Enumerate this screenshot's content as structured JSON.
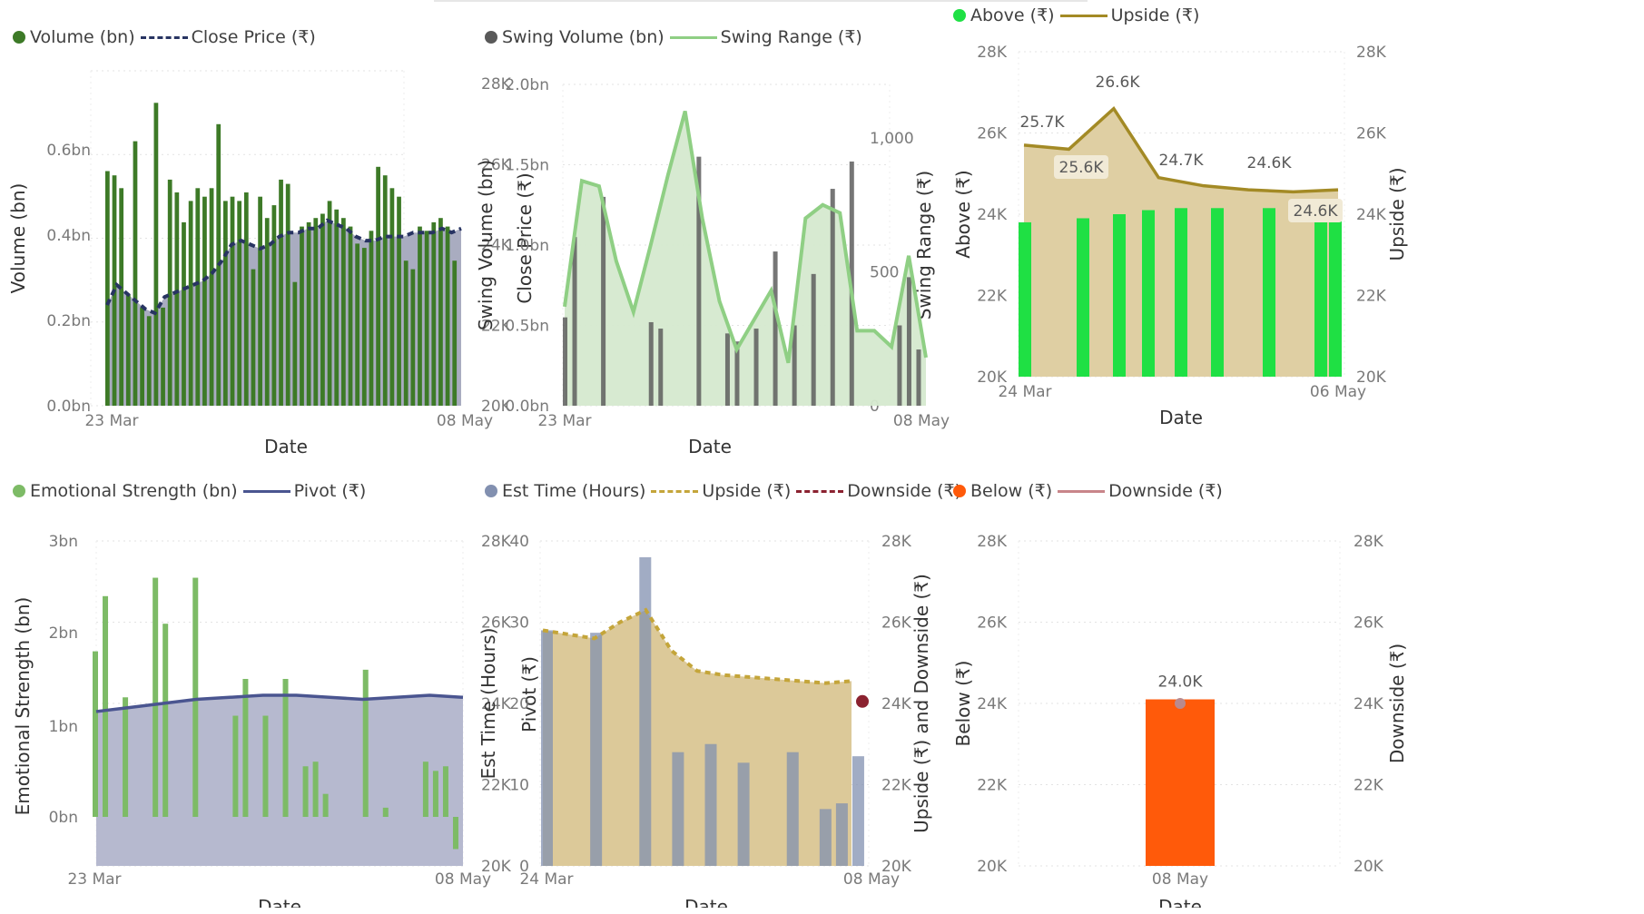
{
  "chart_data": [
    {
      "type": "bar",
      "legend": [
        {
          "label": "Volume (bn)",
          "color": "#3d7a27",
          "shape": "dot"
        },
        {
          "label": "Close Price (₹)",
          "color": "#283462",
          "shape": "dashed"
        }
      ],
      "xlabel": "Date",
      "ylabel": "Volume (bn)",
      "y2label": "Close Price (₹)",
      "x_ticks": [
        "23 Mar",
        "08 May"
      ],
      "y_ticks": [
        "0.0bn",
        "0.2bn",
        "0.4bn",
        "0.6bn"
      ],
      "ylim": [
        0,
        0.7
      ],
      "y2_ticks": [
        "20K",
        "22K",
        "24K",
        "26K",
        "28K"
      ],
      "y2lim": [
        20000,
        28000
      ],
      "bars": [
        0.55,
        0.54,
        0.51,
        0.26,
        0.62,
        0.23,
        0.21,
        0.71,
        0.23,
        0.53,
        0.5,
        0.43,
        0.48,
        0.51,
        0.49,
        0.51,
        0.66,
        0.48,
        0.49,
        0.48,
        0.5,
        0.32,
        0.49,
        0.44,
        0.47,
        0.53,
        0.52,
        0.29,
        0.42,
        0.43,
        0.44,
        0.45,
        0.48,
        0.46,
        0.44,
        0.42,
        0.38,
        0.37,
        0.41,
        0.56,
        0.54,
        0.51,
        0.49,
        0.34,
        0.32,
        0.42,
        0.41,
        0.43,
        0.44,
        0.42,
        0.34
      ],
      "line": [
        22500,
        23000,
        22800,
        22600,
        22400,
        22300,
        22700,
        22800,
        22900,
        23000,
        23100,
        23300,
        23600,
        24000,
        24100,
        24000,
        23900,
        24000,
        24200,
        24300,
        24300,
        24400,
        24400,
        24600,
        24500,
        24400,
        24200,
        24100,
        24100,
        24200,
        24200,
        24200,
        24300,
        24300,
        24300,
        24400,
        24300,
        24400
      ]
    },
    {
      "type": "bar",
      "legend": [
        {
          "label": "Swing Volume (bn)",
          "color": "#595959",
          "shape": "dot"
        },
        {
          "label": "Swing Range (₹)",
          "color": "#8fcf84",
          "shape": "solid"
        }
      ],
      "xlabel": "Date",
      "ylabel": "Swing Volume (bn)",
      "y2label": "Swing Range (₹)",
      "x_ticks": [
        "23 Mar",
        "08 May"
      ],
      "y_ticks": [
        "0.0bn",
        "0.5bn",
        "1.0bn",
        "1.5bn",
        "2.0bn"
      ],
      "ylim": [
        0,
        2.0
      ],
      "y2_ticks": [
        "0",
        "500",
        "1,000"
      ],
      "y2lim": [
        0,
        1200
      ],
      "bars": [
        0.55,
        1.05,
        0,
        0,
        1.3,
        0,
        0,
        0,
        0,
        0.52,
        0.48,
        0,
        0,
        0,
        1.55,
        0,
        0,
        0.45,
        0.4,
        0,
        0.48,
        0,
        0.96,
        0,
        0.5,
        0,
        0.82,
        0,
        1.35,
        0,
        1.52,
        0,
        0,
        0,
        0,
        0.5,
        0.8,
        0.35
      ],
      "area": [
        370,
        840,
        820,
        540,
        350,
        600,
        860,
        1100,
        700,
        390,
        210,
        320,
        430,
        160,
        700,
        750,
        720,
        280,
        280,
        220,
        560,
        180
      ]
    },
    {
      "type": "bar",
      "legend": [
        {
          "label": "Above (₹)",
          "color": "#1fe044",
          "shape": "dot"
        },
        {
          "label": "Upside (₹)",
          "color": "#a38a25",
          "shape": "solid"
        }
      ],
      "xlabel": "Date",
      "ylabel": "Above (₹)",
      "y2label": "Upside (₹)",
      "x_ticks": [
        "24 Mar",
        "06 May"
      ],
      "y_ticks": [
        "20K",
        "22K",
        "24K",
        "26K",
        "28K"
      ],
      "ylim": [
        20000,
        28000
      ],
      "y2_ticks": [
        "20K",
        "22K",
        "24K",
        "26K",
        "28K"
      ],
      "bars": [
        23800,
        23900,
        24000,
        24100,
        24150,
        24150,
        24150,
        24000,
        24000
      ],
      "line": [
        25700,
        25600,
        26600,
        24900,
        24700,
        24600,
        24550,
        24600
      ],
      "labels": [
        {
          "text": "25.7K",
          "boxed": false
        },
        {
          "text": "26.6K",
          "boxed": false
        },
        {
          "text": "25.6K",
          "boxed": true
        },
        {
          "text": "24.7K",
          "boxed": false
        },
        {
          "text": "24.6K",
          "boxed": false
        },
        {
          "text": "24.6K",
          "boxed": true
        }
      ]
    },
    {
      "type": "bar",
      "legend": [
        {
          "label": "Emotional Strength (bn)",
          "color": "#7dbb66",
          "shape": "dot"
        },
        {
          "label": "Pivot (₹)",
          "color": "#4a5590",
          "shape": "solid"
        }
      ],
      "xlabel": "Date",
      "ylabel": "Emotional Strength (bn)",
      "y2label": "Pivot (₹)",
      "x_ticks": [
        "23 Mar",
        "08 May"
      ],
      "y_ticks": [
        "0bn",
        "1bn",
        "2bn",
        "3bn"
      ],
      "ylim": [
        -0.5,
        3.0
      ],
      "y2_ticks": [
        "20K",
        "22K",
        "24K",
        "26K",
        "28K"
      ],
      "y2lim": [
        20000,
        28000
      ],
      "bars": [
        1.8,
        2.4,
        0,
        1.3,
        0,
        0,
        2.6,
        2.1,
        0,
        0,
        2.6,
        0,
        0,
        0,
        1.1,
        1.5,
        0,
        1.1,
        0,
        1.5,
        0,
        0.55,
        0.6,
        0.25,
        0,
        0,
        0,
        1.6,
        0,
        0.1,
        0,
        0,
        0,
        0.6,
        0.5,
        0.55,
        -0.35
      ],
      "line": [
        23800,
        23900,
        24000,
        24100,
        24150,
        24200,
        24200,
        24150,
        24100,
        24150,
        24200,
        24150
      ]
    },
    {
      "type": "bar",
      "legend": [
        {
          "label": "Est Time (Hours)",
          "color": "#8290b0",
          "shape": "dot"
        },
        {
          "label": "Upside (₹)",
          "color": "#c4a53a",
          "shape": "dashed"
        },
        {
          "label": "Downside (₹)",
          "color": "#8b2230",
          "shape": "dashed"
        }
      ],
      "xlabel": "Date",
      "ylabel": "Est Time (Hours)",
      "y2label": "Upside (₹) and Downside (₹)",
      "x_ticks": [
        "24 Mar",
        "08 May"
      ],
      "y_ticks": [
        "0",
        "10",
        "20",
        "30",
        "40"
      ],
      "ylim": [
        0,
        40
      ],
      "y2_ticks": [
        "20K",
        "22K",
        "24K",
        "26K",
        "28K"
      ],
      "y2lim": [
        20000,
        28000
      ],
      "bars": [
        29,
        0,
        0,
        28.7,
        0,
        0,
        38,
        0,
        14,
        0,
        15,
        0,
        12.7,
        0,
        0,
        14,
        0,
        7,
        7.7,
        13.5
      ],
      "upside": [
        25800,
        25700,
        25600,
        26000,
        26300,
        25300,
        24800,
        24700,
        24650,
        24600,
        24550,
        24500,
        24550
      ],
      "downside_point": 24050
    },
    {
      "type": "bar",
      "legend": [
        {
          "label": "Below (₹)",
          "color": "#ff5a0a",
          "shape": "dot"
        },
        {
          "label": "Downside (₹)",
          "color": "#c8858a",
          "shape": "solid"
        }
      ],
      "xlabel": "Date",
      "ylabel": "Below (₹)",
      "y2label": "Downside (₹)",
      "x_ticks": [
        "08 May"
      ],
      "y_ticks": [
        "20K",
        "22K",
        "24K",
        "26K",
        "28K"
      ],
      "ylim": [
        20000,
        28000
      ],
      "y2_ticks": [
        "20K",
        "22K",
        "24K",
        "26K",
        "28K"
      ],
      "bars": [
        24100
      ],
      "point": 24000,
      "labels": [
        {
          "text": "24.0K"
        }
      ]
    }
  ]
}
